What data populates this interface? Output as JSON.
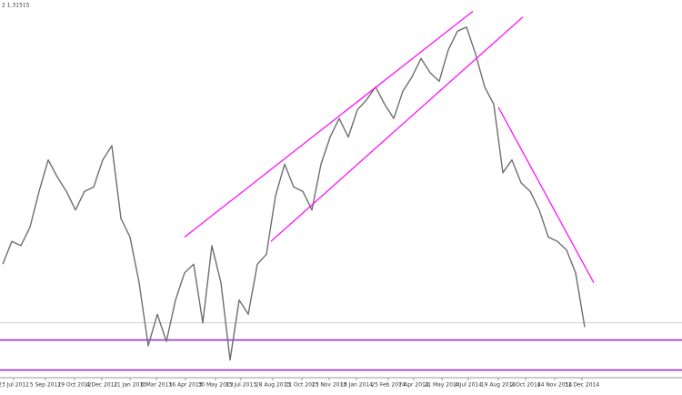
{
  "chart_data": {
    "type": "line",
    "header": "2 1.31515",
    "series": [
      {
        "color": "#6e6e6e",
        "values": [
          1.548,
          1.564,
          1.561,
          1.574,
          1.599,
          1.621,
          1.609,
          1.599,
          1.586,
          1.599,
          1.602,
          1.621,
          1.631,
          1.58,
          1.567,
          1.535,
          1.491,
          1.513,
          1.494,
          1.523,
          1.542,
          1.548,
          1.507,
          1.561,
          1.535,
          1.481,
          1.523,
          1.513,
          1.548,
          1.555,
          1.596,
          1.618,
          1.602,
          1.599,
          1.586,
          1.618,
          1.637,
          1.65,
          1.637,
          1.656,
          1.663,
          1.672,
          1.66,
          1.65,
          1.669,
          1.679,
          1.692,
          1.682,
          1.676,
          1.698,
          1.711,
          1.714,
          1.695,
          1.672,
          1.66,
          1.612,
          1.621,
          1.605,
          1.599,
          1.586,
          1.567,
          1.564,
          1.558,
          1.542,
          1.504
        ]
      }
    ],
    "xlim": [
      -0.3,
      74.7
    ],
    "ylim": [
      1.4686,
      1.7329
    ],
    "xticks": [
      {
        "value": 1.2,
        "label": "23 Jul 2012"
      },
      {
        "value": 4.7,
        "label": "5 Sep 2012"
      },
      {
        "value": 7.9,
        "label": "19 Oct 2012"
      },
      {
        "value": 10.9,
        "label": "4 Dec 2012"
      },
      {
        "value": 14.0,
        "label": "21 Jan 2013"
      },
      {
        "value": 16.9,
        "label": "6 Mar 2013"
      },
      {
        "value": 20.1,
        "label": "16 Apr 2013"
      },
      {
        "value": 23.4,
        "label": "30 May 2013"
      },
      {
        "value": 26.2,
        "label": "15 Jul 2013"
      },
      {
        "value": 29.7,
        "label": "28 Aug 2013"
      },
      {
        "value": 32.9,
        "label": "11 Oct 2013"
      },
      {
        "value": 35.9,
        "label": "25 Nov 2013"
      },
      {
        "value": 38.9,
        "label": "10 Jan 2014"
      },
      {
        "value": 42.4,
        "label": "25 Feb 2014"
      },
      {
        "value": 45.2,
        "label": "7 Apr 2014"
      },
      {
        "value": 48.3,
        "label": "21 May 2014"
      },
      {
        "value": 51.2,
        "label": "4 Jul 2014"
      },
      {
        "value": 54.5,
        "label": "19 Aug 2014"
      },
      {
        "value": 57.5,
        "label": "2 Oct 2014"
      },
      {
        "value": 60.7,
        "label": "14 Nov 2014"
      },
      {
        "value": 63.7,
        "label": "31 Dec 2014"
      }
    ],
    "trendlines": [
      {
        "color": "#ff00ff",
        "x": [
          20,
          51.7
        ],
        "values": [
          1.567,
          1.725
        ]
      },
      {
        "color": "#ff00ff",
        "x": [
          29.5,
          57.2
        ],
        "values": [
          1.564,
          1.721
        ]
      },
      {
        "color": "#ff00ff",
        "x": [
          54.5,
          65
        ],
        "values": [
          1.658,
          1.535
        ]
      }
    ],
    "hlines": [
      {
        "color": "#9933cc",
        "value": 1.495
      },
      {
        "color": "#9933cc",
        "value": 1.474
      },
      {
        "color": "#c8c8c8",
        "value": 1.507
      }
    ]
  }
}
